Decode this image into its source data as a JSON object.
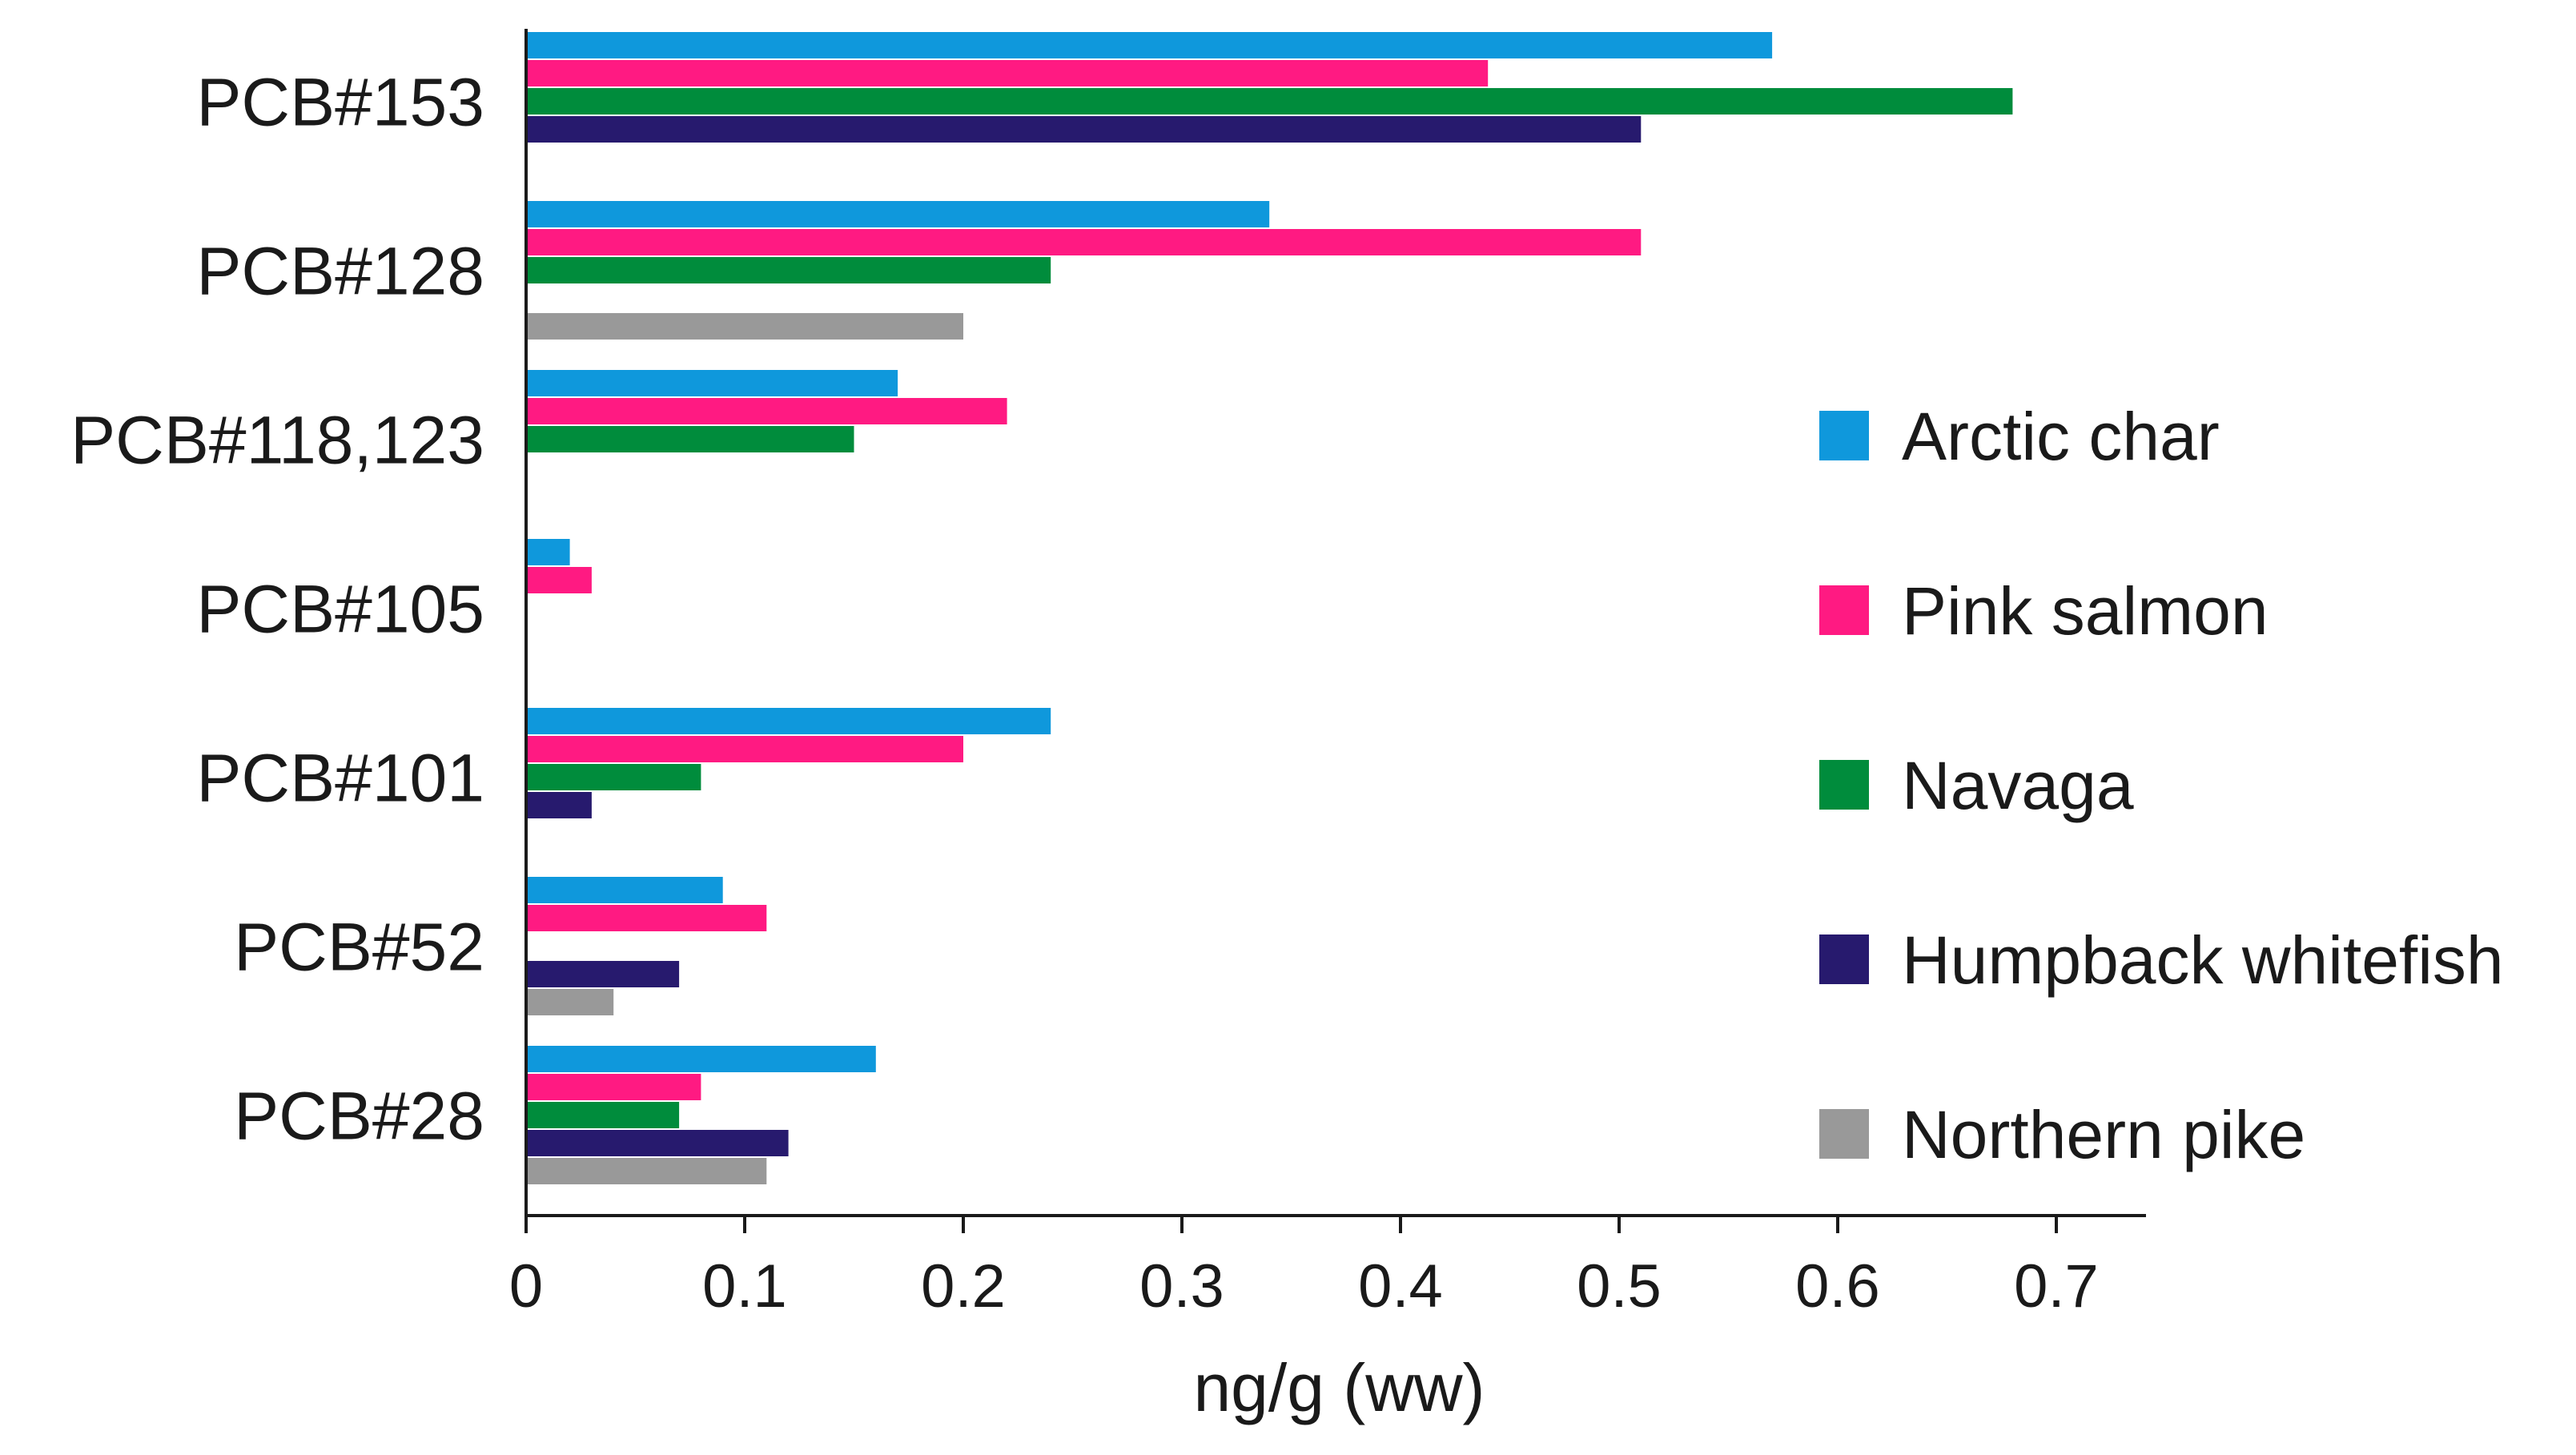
{
  "chart_data": {
    "type": "bar",
    "orientation": "horizontal",
    "title": "",
    "xlabel": "ng/g (ww)",
    "ylabel": "",
    "xlim": [
      0,
      0.74
    ],
    "xticks": [
      0,
      0.1,
      0.2,
      0.3,
      0.4,
      0.5,
      0.6,
      0.7
    ],
    "xtick_labels": [
      "0",
      "0.1",
      "0.2",
      "0.3",
      "0.4",
      "0.5",
      "0.6",
      "0.7"
    ],
    "grid": false,
    "legend_position": "right",
    "categories": [
      "PCB#153",
      "PCB#128",
      "PCB#118,123",
      "PCB#105",
      "PCB#101",
      "PCB#52",
      "PCB#28"
    ],
    "series": [
      {
        "name": "Arctic char",
        "color": "#0f98dc",
        "values": [
          0.57,
          0.34,
          0.17,
          0.02,
          0.24,
          0.09,
          0.16
        ]
      },
      {
        "name": "Pink salmon",
        "color": "#ff1a82",
        "values": [
          0.44,
          0.51,
          0.22,
          0.03,
          0.2,
          0.11,
          0.08
        ]
      },
      {
        "name": "Navaga",
        "color": "#008c3c",
        "values": [
          0.68,
          0.24,
          0.15,
          0,
          0.08,
          0,
          0.07
        ]
      },
      {
        "name": "Humpback whitefish",
        "color": "#271a6e",
        "values": [
          0.51,
          0,
          0,
          0,
          0.03,
          0.07,
          0.12
        ]
      },
      {
        "name": "Northern pike",
        "color": "#999999",
        "values": [
          0,
          0.2,
          0,
          0,
          0,
          0.04,
          0.11
        ]
      }
    ]
  }
}
